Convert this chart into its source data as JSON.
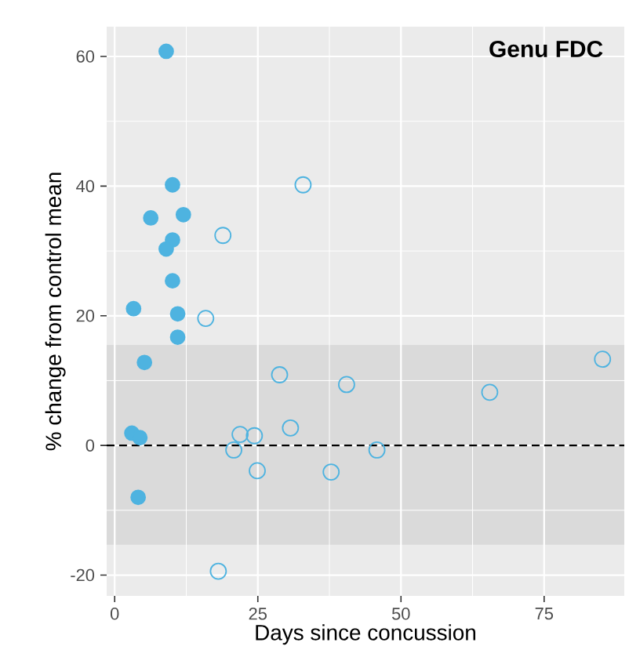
{
  "chart_data": {
    "type": "scatter",
    "title": "Genu FDC",
    "xlabel": "Days since concussion",
    "ylabel": "% change from control mean",
    "xlim": [
      -1.4,
      89
    ],
    "ylim": [
      -23.2,
      64.6
    ],
    "xticks": [
      0,
      25,
      50,
      75
    ],
    "yticks": [
      -20,
      0,
      20,
      40,
      60
    ],
    "grid": true,
    "marker": "circle",
    "series": [
      {
        "color": "#4eb3e0",
        "x": [
          9,
          10.1,
          6.3,
          12,
          10.1,
          9,
          10.1,
          3.3,
          11,
          11,
          5.2,
          3,
          4.4,
          4.1
        ],
        "values": [
          60.8,
          40.2,
          35.1,
          35.6,
          31.7,
          30.3,
          25.4,
          21.1,
          20.3,
          16.7,
          12.8,
          1.9,
          1.2,
          -8.0
        ]
      },
      {
        "color": "#4eb3e0",
        "x": [
          32.9,
          18.9,
          15.9,
          28.8,
          40.5,
          21.9,
          24.4,
          30.7,
          20.8,
          24.9,
          37.8,
          45.8,
          65.5,
          85.2,
          18.1
        ],
        "values": [
          40.2,
          32.4,
          19.6,
          10.9,
          9.4,
          1.7,
          1.5,
          2.7,
          -0.7,
          -3.9,
          -4.1,
          -0.7,
          8.2,
          13.3,
          -19.4
        ]
      }
    ],
    "ref_lines": [
      {
        "axis": "y",
        "value": 0,
        "color": "#000000",
        "line_style": "dashed"
      }
    ],
    "bands": [
      {
        "axis": "y",
        "from": -15.3,
        "to": 15.5,
        "color": "#dadada"
      }
    ]
  }
}
